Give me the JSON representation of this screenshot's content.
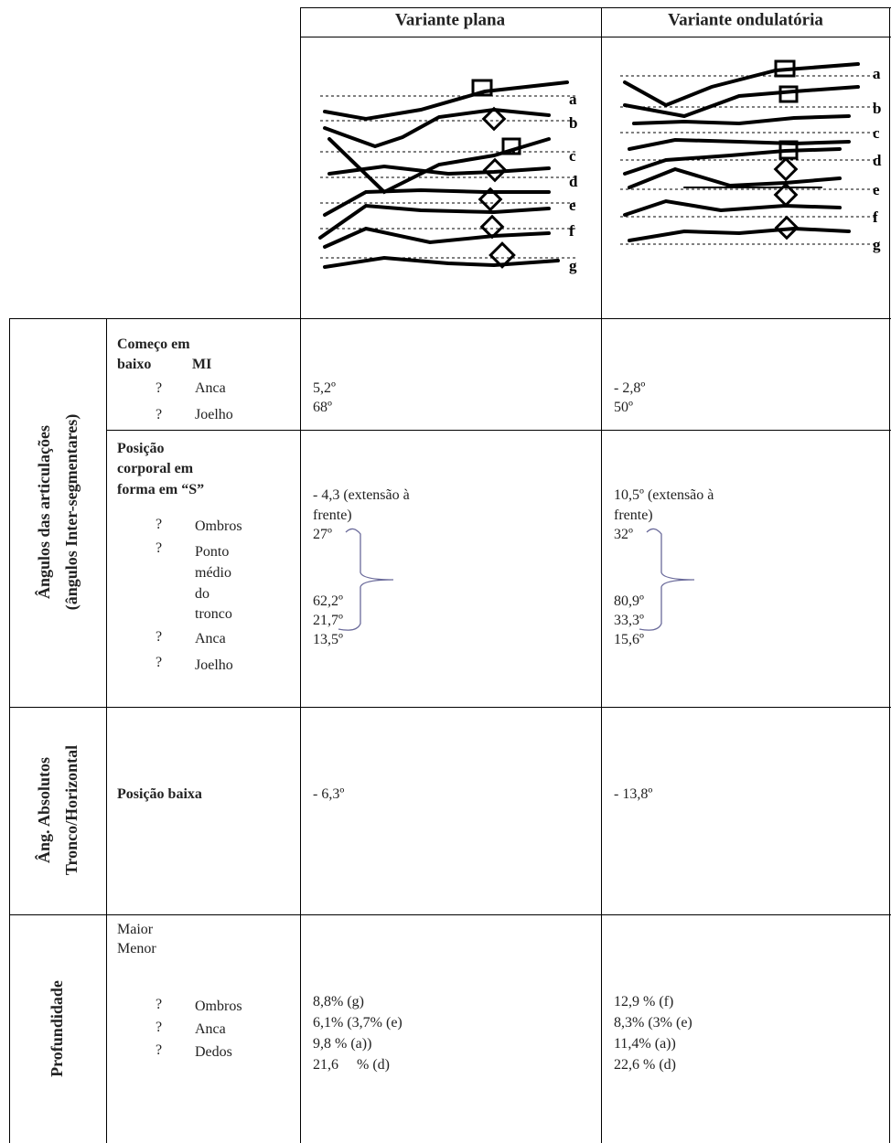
{
  "header": {
    "col1": "Variante plana",
    "col2": "Variante ondulatória"
  },
  "figures": {
    "plana_labels": [
      "a",
      "b",
      "c",
      "d",
      "e",
      "f",
      "g"
    ],
    "ondulatoria_labels": [
      "a",
      "b",
      "c",
      "d",
      "e",
      "f",
      "g"
    ]
  },
  "group1": {
    "label_lines": [
      "Ângulos das articulações",
      "(ângulos Inter-segmentares)"
    ],
    "section_a": {
      "title_lines": [
        "Começo em",
        "baixo",
        "MI"
      ],
      "items": [
        {
          "bullet": "?",
          "label": "Anca"
        },
        {
          "bullet": "?",
          "label": "Joelho"
        }
      ],
      "plana": [
        "5,2º",
        "68º"
      ],
      "ondulatoria": [
        "- 2,8º",
        "50º"
      ]
    },
    "section_b": {
      "title_lines": [
        "Posição",
        "corporal em",
        "forma em “S”"
      ],
      "items": [
        {
          "bullet": "?",
          "label_lines": [
            "Ombros"
          ]
        },
        {
          "bullet": "?",
          "label_lines": [
            "Ponto",
            "médio",
            "do",
            "tronco"
          ]
        },
        {
          "bullet": "?",
          "label_lines": [
            "Anca"
          ]
        },
        {
          "bullet": "?",
          "label_lines": [
            "Joelho"
          ]
        }
      ],
      "plana": [
        "- 4,3 (extensão à",
        "frente)",
        "27º",
        "62,2º",
        "21,7º",
        "13,5º"
      ],
      "ondulatoria": [
        "10,5º (extensão à",
        "frente)",
        "32º",
        "80,9º",
        "33,3º",
        "15,6º"
      ]
    }
  },
  "group2": {
    "label_lines": [
      "Âng. Absolutos",
      "Tronco/Horizontal"
    ],
    "title": "Posição baixa",
    "plana": "- 6,3º",
    "ondulatoria": "- 13,8º"
  },
  "group3": {
    "label": "Profundidade",
    "title_lines": [
      "Maior",
      "Menor"
    ],
    "items": [
      {
        "bullet": "?",
        "label": "Ombros"
      },
      {
        "bullet": "?",
        "label": "Anca"
      },
      {
        "bullet": "?",
        "label": "Dedos"
      }
    ],
    "plana": [
      "8,8% (g)",
      "6,1% (3,7% (e)",
      "9,8 % (a))",
      "21,6     % (d)"
    ],
    "ondulatoria": [
      "12,9 % (f)",
      "8,3% (3% (e)",
      "11,4% (a))",
      "22,6 % (d)"
    ]
  }
}
